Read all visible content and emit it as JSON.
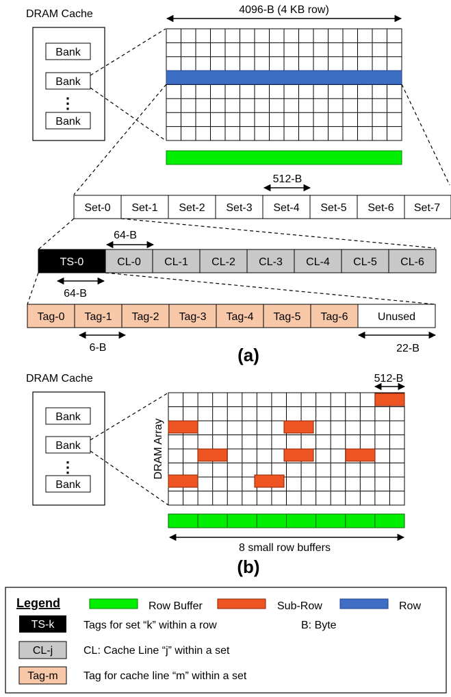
{
  "part_a": {
    "dram_cache_title": "DRAM Cache",
    "banks": [
      "Bank",
      "Bank",
      "Bank"
    ],
    "row_size_label": "4096-B (4 KB row)",
    "set_size_label": "512-B",
    "sets": [
      "Set-0",
      "Set-1",
      "Set-2",
      "Set-3",
      "Set-4",
      "Set-5",
      "Set-6",
      "Set-7"
    ],
    "cl_size_label": "64-B",
    "ts_label": "TS-0",
    "cache_lines": [
      "CL-0",
      "CL-1",
      "CL-2",
      "CL-3",
      "CL-4",
      "CL-5",
      "CL-6"
    ],
    "ts_size_label": "64-B",
    "tags": [
      "Tag-0",
      "Tag-1",
      "Tag-2",
      "Tag-3",
      "Tag-4",
      "Tag-5",
      "Tag-6"
    ],
    "unused_label": "Unused",
    "tag_size_label": "6-B",
    "unused_size_label": "22-B",
    "caption": "(a)"
  },
  "part_b": {
    "dram_cache_title": "DRAM Cache",
    "banks": [
      "Bank",
      "Bank",
      "Bank"
    ],
    "array_label": "DRAM Array",
    "subrow_size_label": "512-B",
    "row_buffers_label": "8 small row buffers",
    "caption": "(b)"
  },
  "legend": {
    "title": "Legend",
    "row_buffer": "Row Buffer",
    "sub_row": "Sub-Row",
    "row": "Row",
    "ts_key": "TS-k",
    "ts_desc": "Tags for set “k” within a row",
    "byte_desc": "B: Byte",
    "cl_key": "CL-j",
    "cl_desc": "CL: Cache Line “j” within a set",
    "tag_key": "Tag-m",
    "tag_desc": "Tag for cache line “m” within a set"
  },
  "colors": {
    "row_buffer": "#00ee00",
    "sub_row": "#ee5522",
    "row": "#3f6fc4",
    "ts": "#000000",
    "cl": "#c8c8c8",
    "tag": "#f8c8a8"
  }
}
